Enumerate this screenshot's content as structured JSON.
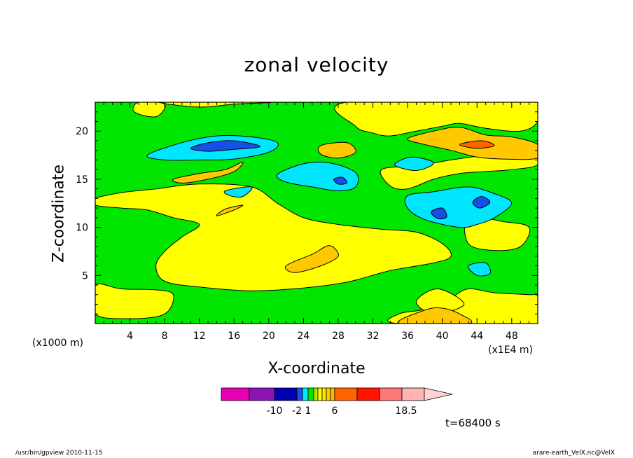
{
  "chart_data": {
    "type": "heatmap",
    "title": "zonal velocity",
    "xlabel": "X-coordinate",
    "ylabel": "Z-coordinate",
    "x_unit_label": "(x1000 m)",
    "x_unit_label2": "(x1E4 m)",
    "xlim": [
      0,
      51
    ],
    "ylim": [
      0,
      23
    ],
    "xticks": [
      4,
      8,
      12,
      16,
      20,
      24,
      28,
      32,
      36,
      40,
      44,
      48
    ],
    "yticks": [
      5,
      10,
      15,
      20
    ],
    "colorbar": {
      "levels_shown": [
        "-10",
        "-2",
        "1",
        "6",
        "18.5"
      ],
      "colors": [
        "#e600b4",
        "#8c14b4",
        "#0000b4",
        "#1450e6",
        "#00e6ff",
        "#00e600",
        "#b4e600",
        "#ffff00",
        "#ffe600",
        "#ffc800",
        "#ffb400",
        "#ff6400",
        "#ff1400",
        "#ff7878",
        "#ffb4b4",
        "#ffd2d2"
      ]
    },
    "regions": [
      {
        "level": "yellow",
        "color": "#ffff00",
        "shapes": [
          [
            [
              0,
              1
            ],
            [
              4,
              0.5
            ],
            [
              8,
              1
            ],
            [
              9,
              3
            ],
            [
              7,
              3.5
            ],
            [
              3,
              3.6
            ],
            [
              0,
              4
            ]
          ],
          [
            [
              0,
              13
            ],
            [
              3,
              13.6
            ],
            [
              7,
              14
            ],
            [
              12,
              14.5
            ],
            [
              18,
              14.2
            ],
            [
              21,
              12.5
            ],
            [
              24,
              11
            ],
            [
              28,
              10.3
            ],
            [
              33,
              9.8
            ],
            [
              37,
              9.5
            ],
            [
              40,
              8.3
            ],
            [
              41,
              7
            ],
            [
              39,
              6.3
            ],
            [
              34,
              5.5
            ],
            [
              29,
              4.3
            ],
            [
              24,
              3.7
            ],
            [
              18,
              3.4
            ],
            [
              12,
              3.8
            ],
            [
              8,
              4.4
            ],
            [
              7,
              6
            ],
            [
              8,
              7.5
            ],
            [
              10,
              9
            ],
            [
              12,
              10.3
            ],
            [
              9,
              11
            ],
            [
              6,
              11.8
            ],
            [
              3,
              12
            ],
            [
              0,
              12.3
            ]
          ],
          [
            [
              29,
              23
            ],
            [
              51,
              23
            ],
            [
              51,
              21
            ],
            [
              49,
              20
            ],
            [
              45,
              20.3
            ],
            [
              42,
              20.8
            ],
            [
              40,
              20.5
            ],
            [
              37,
              20
            ],
            [
              34,
              19.5
            ],
            [
              32,
              19.8
            ],
            [
              30,
              20.5
            ]
          ],
          [
            [
              33,
              16
            ],
            [
              37,
              16.4
            ],
            [
              41,
              17
            ],
            [
              45,
              17.5
            ],
            [
              51,
              18
            ],
            [
              51,
              16.5
            ],
            [
              48,
              16
            ],
            [
              45,
              15.8
            ],
            [
              42,
              15.6
            ],
            [
              39,
              15
            ],
            [
              36,
              14
            ],
            [
              34,
              14.3
            ]
          ],
          [
            [
              35,
              1
            ],
            [
              38,
              1.5
            ],
            [
              41,
              2.7
            ],
            [
              43,
              3.6
            ],
            [
              46,
              3.2
            ],
            [
              50,
              3
            ],
            [
              51,
              2.8
            ],
            [
              51,
              0
            ],
            [
              35,
              0
            ]
          ],
          [
            [
              8,
              23
            ],
            [
              12,
              22.5
            ],
            [
              16,
              22.8
            ],
            [
              20,
              23
            ]
          ],
          [
            [
              4.5,
              22
            ],
            [
              7,
              21.5
            ],
            [
              8,
              22.8
            ],
            [
              5,
              23
            ]
          ],
          [
            [
              43,
              11
            ],
            [
              47,
              10.6
            ],
            [
              50,
              10
            ],
            [
              49,
              8
            ],
            [
              46,
              7.6
            ],
            [
              43,
              8.3
            ]
          ],
          [
            [
              39,
              1
            ],
            [
              42.5,
              2
            ],
            [
              39.5,
              3.6
            ],
            [
              37,
              2.3
            ]
          ]
        ]
      },
      {
        "level": "orange",
        "color": "#ffc800",
        "shapes": [
          [
            [
              9,
              15
            ],
            [
              12,
              15.6
            ],
            [
              15,
              16
            ],
            [
              17,
              16.8
            ],
            [
              16,
              15.8
            ],
            [
              13,
              15
            ],
            [
              10,
              14.6
            ]
          ],
          [
            [
              36,
              19.2
            ],
            [
              39,
              20
            ],
            [
              42,
              20.4
            ],
            [
              45,
              19.6
            ],
            [
              48,
              19.4
            ],
            [
              51,
              18.6
            ],
            [
              51,
              17.2
            ],
            [
              47,
              17.1
            ],
            [
              44,
              17.3
            ],
            [
              41,
              18
            ],
            [
              38,
              18.6
            ]
          ],
          [
            [
              26,
              18.5
            ],
            [
              29,
              18.8
            ],
            [
              30,
              17.8
            ],
            [
              28,
              17.2
            ],
            [
              26,
              17.6
            ]
          ],
          [
            [
              22,
              6
            ],
            [
              25,
              7.2
            ],
            [
              27,
              8.1
            ],
            [
              28,
              7
            ],
            [
              26,
              6
            ],
            [
              23,
              5.3
            ]
          ],
          [
            [
              14,
              11.2
            ],
            [
              16,
              11.8
            ],
            [
              17,
              12.3
            ],
            [
              15,
              11.9
            ]
          ],
          [
            [
              35,
              0
            ],
            [
              38,
              1.4
            ],
            [
              40,
              1.6
            ],
            [
              42,
              1
            ],
            [
              43,
              0
            ]
          ]
        ]
      },
      {
        "level": "red",
        "color": "#ff6400",
        "shapes": [
          [
            [
              42,
              18.6
            ],
            [
              44.5,
              19
            ],
            [
              46,
              18.5
            ],
            [
              44,
              18.2
            ]
          ]
        ]
      },
      {
        "level": "cyan",
        "color": "#00e6ff",
        "shapes": [
          [
            [
              6,
              17.5
            ],
            [
              10,
              18.8
            ],
            [
              14,
              19.5
            ],
            [
              18,
              19.4
            ],
            [
              21,
              18.8
            ],
            [
              20,
              17.8
            ],
            [
              16,
              17.1
            ],
            [
              12,
              17
            ],
            [
              8,
              17
            ]
          ],
          [
            [
              21,
              15.5
            ],
            [
              24,
              16.6
            ],
            [
              27,
              16.7
            ],
            [
              30,
              15.7
            ],
            [
              30,
              14.2
            ],
            [
              28,
              13.8
            ],
            [
              25,
              14.2
            ],
            [
              22,
              14.7
            ]
          ],
          [
            [
              36,
              13.3
            ],
            [
              39,
              13.7
            ],
            [
              43,
              14.2
            ],
            [
              46,
              13.5
            ],
            [
              48,
              12.5
            ],
            [
              46,
              11
            ],
            [
              44,
              10.3
            ],
            [
              42,
              10
            ],
            [
              38,
              10.8
            ],
            [
              36,
              12
            ]
          ],
          [
            [
              34.5,
              16.5
            ],
            [
              36.5,
              17.3
            ],
            [
              39,
              16.7
            ],
            [
              37,
              15.9
            ]
          ],
          [
            [
              15,
              13.8
            ],
            [
              18,
              14.2
            ],
            [
              17,
              13.2
            ],
            [
              15.5,
              13.3
            ]
          ],
          [
            [
              43,
              6
            ],
            [
              45,
              6.3
            ],
            [
              45.5,
              5.2
            ],
            [
              44,
              5
            ]
          ]
        ]
      },
      {
        "level": "blue",
        "color": "#1450e6",
        "shapes": [
          [
            [
              11,
              18.2
            ],
            [
              13,
              18.8
            ],
            [
              16,
              19
            ],
            [
              19,
              18.4
            ],
            [
              16,
              18.1
            ],
            [
              13,
              17.9
            ]
          ],
          [
            [
              27.5,
              15
            ],
            [
              28.5,
              15.2
            ],
            [
              29,
              14.6
            ],
            [
              28,
              14.5
            ]
          ],
          [
            [
              38.7,
              11.6
            ],
            [
              40,
              12
            ],
            [
              40.5,
              11.1
            ],
            [
              39.5,
              10.9
            ]
          ],
          [
            [
              43.5,
              12.6
            ],
            [
              44.5,
              13.2
            ],
            [
              45.5,
              12.6
            ],
            [
              44.3,
              12
            ]
          ]
        ]
      }
    ]
  },
  "time_label": "t=68400 s",
  "footer_left": "/usr/bin/gpview  2010-11-15",
  "footer_right": "arare-earth_VelX.nc@VelX"
}
